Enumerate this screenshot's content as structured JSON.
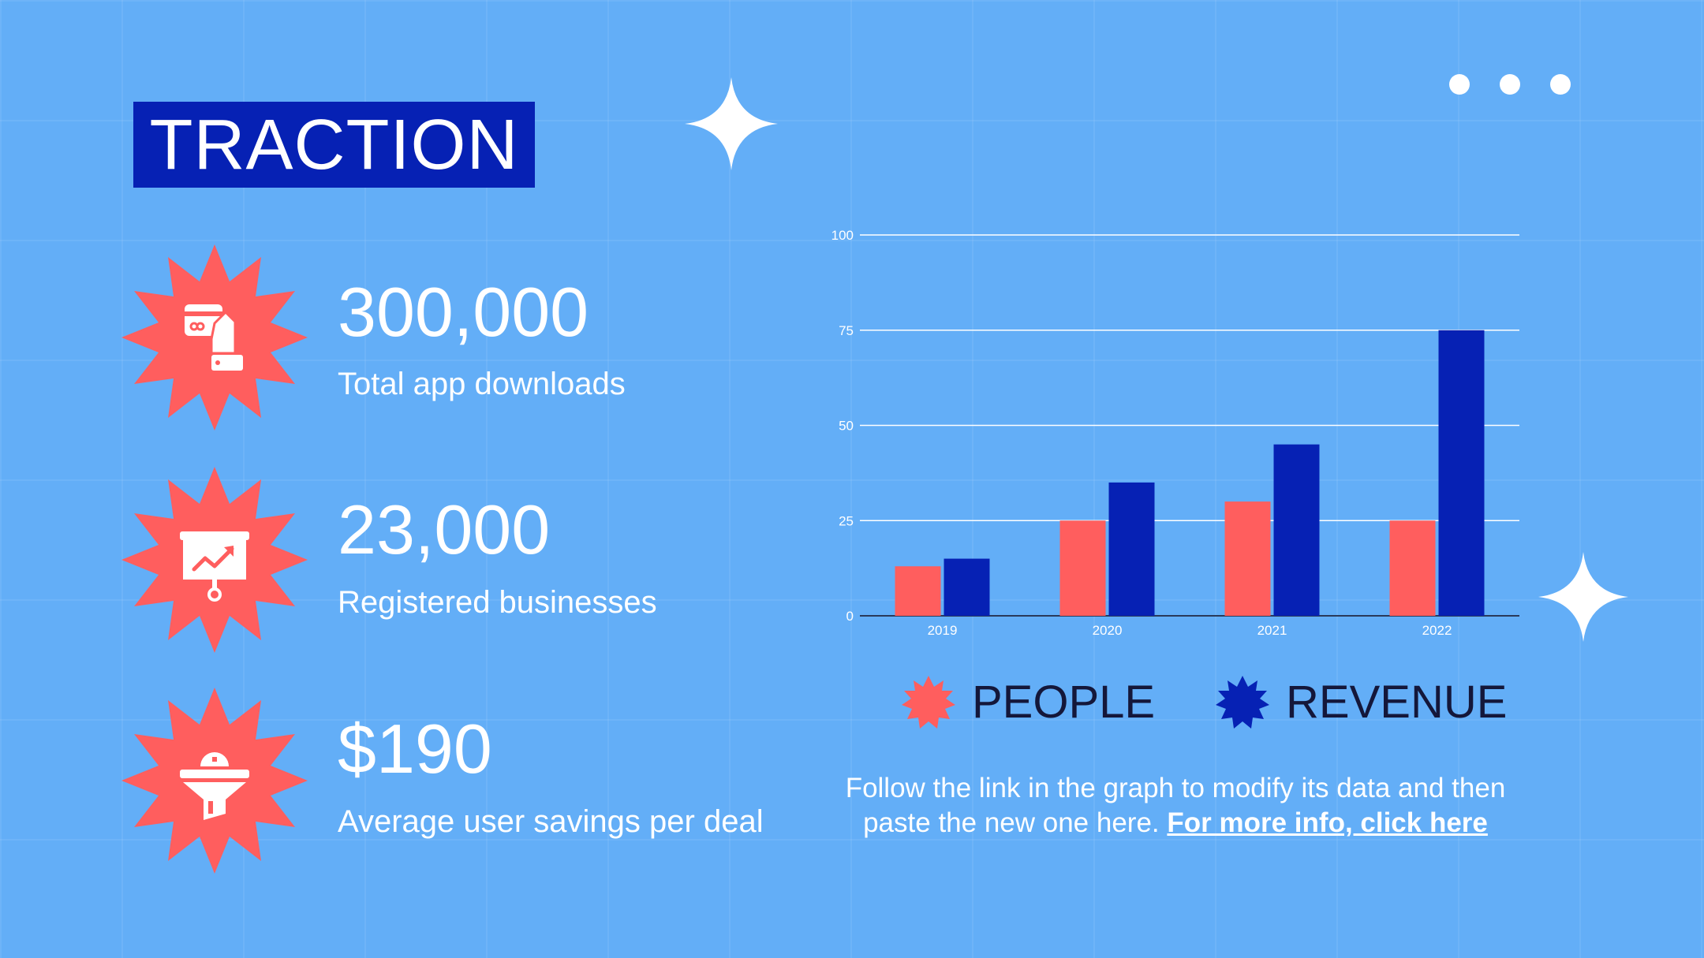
{
  "title": "TRACTION",
  "stats": [
    {
      "value": "300,000",
      "label": "Total app downloads",
      "icon": "mobile-payment-icon"
    },
    {
      "value": "23,000",
      "label": "Registered businesses",
      "icon": "presentation-growth-icon"
    },
    {
      "value": "$190",
      "label": "Average user savings per deal",
      "icon": "funnel-icon"
    }
  ],
  "colors": {
    "background": "#63AEF7",
    "accent_red": "#FF5E5E",
    "accent_blue": "#0621B4",
    "text_dark": "#14173A"
  },
  "chart_data": {
    "type": "bar",
    "categories": [
      "2019",
      "2020",
      "2021",
      "2022"
    ],
    "series": [
      {
        "name": "PEOPLE",
        "color": "#FF5E5E",
        "values": [
          13,
          25,
          30,
          25
        ]
      },
      {
        "name": "REVENUE",
        "color": "#0621B4",
        "values": [
          15,
          35,
          45,
          75
        ]
      }
    ],
    "ylim": [
      0,
      100
    ],
    "yticks": [
      "0",
      "25",
      "50",
      "75",
      "100"
    ],
    "title": "",
    "xlabel": "",
    "ylabel": "",
    "grid": true,
    "legend_position": "bottom"
  },
  "legend": {
    "people": "PEOPLE",
    "revenue": "REVENUE"
  },
  "note": {
    "line1": "Follow the link in the graph to modify its data and then",
    "line2": "paste the new one here.",
    "link": "For more info, click here"
  }
}
